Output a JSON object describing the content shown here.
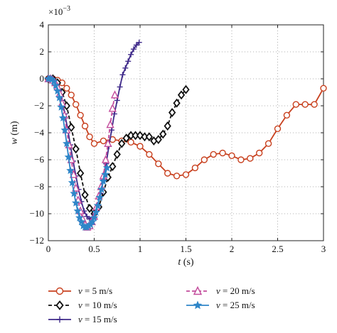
{
  "chart_data": {
    "type": "line",
    "xlabel_var": "t",
    "xlabel_unit": " (s)",
    "ylabel_var": "w",
    "ylabel_unit": " (m)",
    "y_multiplier": "×10",
    "y_multiplier_exp": "−3",
    "xlim": [
      0,
      3
    ],
    "ylim": [
      -12,
      4
    ],
    "xticks": [
      0,
      0.5,
      1,
      1.5,
      2,
      2.5,
      3
    ],
    "xtick_labels": [
      "0",
      "0.5",
      "1",
      "1.5",
      "2",
      "2.5",
      "3"
    ],
    "yticks": [
      4,
      2,
      0,
      -2,
      -4,
      -6,
      -8,
      -10,
      -12
    ],
    "ytick_labels": [
      "4",
      "2",
      "0",
      "−2",
      "−4",
      "−6",
      "−8",
      "−10",
      "−12"
    ],
    "grid": true,
    "legend_position": "below",
    "series": [
      {
        "name_var": "v",
        "name_rest": " = 5 m/s",
        "color": "#c8401e",
        "dash": "solid",
        "marker": "circle",
        "x": [
          0,
          0.05,
          0.1,
          0.15,
          0.2,
          0.25,
          0.3,
          0.35,
          0.4,
          0.45,
          0.5,
          0.6,
          0.7,
          0.8,
          0.9,
          1.0,
          1.1,
          1.2,
          1.3,
          1.4,
          1.5,
          1.6,
          1.7,
          1.8,
          1.9,
          2.0,
          2.1,
          2.2,
          2.3,
          2.4,
          2.5,
          2.6,
          2.7,
          2.8,
          2.9,
          3.0
        ],
        "y": [
          0,
          0,
          -0.1,
          -0.3,
          -0.7,
          -1.2,
          -1.9,
          -2.7,
          -3.5,
          -4.3,
          -4.8,
          -4.6,
          -4.5,
          -4.6,
          -4.7,
          -5.0,
          -5.6,
          -6.3,
          -7.0,
          -7.2,
          -7.1,
          -6.6,
          -6.0,
          -5.6,
          -5.5,
          -5.7,
          -6.0,
          -5.9,
          -5.5,
          -4.8,
          -3.7,
          -2.7,
          -1.9,
          -1.9,
          -1.9,
          -0.7
        ]
      },
      {
        "name_var": "v",
        "name_rest": " = 10 m/s",
        "color": "#111111",
        "dash": "dashed",
        "marker": "diamond",
        "x": [
          0,
          0.05,
          0.1,
          0.15,
          0.2,
          0.25,
          0.3,
          0.35,
          0.4,
          0.45,
          0.5,
          0.55,
          0.6,
          0.65,
          0.7,
          0.75,
          0.8,
          0.85,
          0.9,
          0.95,
          1.0,
          1.05,
          1.1,
          1.15,
          1.2,
          1.25,
          1.3,
          1.35,
          1.4,
          1.45,
          1.5
        ],
        "y": [
          0,
          0,
          -0.3,
          -1.0,
          -2.0,
          -3.6,
          -5.2,
          -7.0,
          -8.6,
          -9.6,
          -10.0,
          -9.5,
          -8.4,
          -7.3,
          -6.5,
          -5.6,
          -4.8,
          -4.4,
          -4.2,
          -4.2,
          -4.2,
          -4.3,
          -4.3,
          -4.6,
          -4.5,
          -4.1,
          -3.5,
          -2.5,
          -1.8,
          -1.2,
          -0.8
        ]
      },
      {
        "name_var": "v",
        "name_rest": " = 15 m/s",
        "color": "#3f2a8a",
        "dash": "solid",
        "marker": "plus",
        "x": [
          0,
          0.03,
          0.06,
          0.09,
          0.12,
          0.15,
          0.18,
          0.21,
          0.24,
          0.27,
          0.3,
          0.33,
          0.36,
          0.39,
          0.42,
          0.45,
          0.48,
          0.51,
          0.54,
          0.57,
          0.6,
          0.63,
          0.66,
          0.69,
          0.72,
          0.75,
          0.78,
          0.81,
          0.84,
          0.87,
          0.9,
          0.93,
          0.96,
          0.99
        ],
        "y": [
          0,
          0,
          -0.1,
          -0.4,
          -0.9,
          -1.6,
          -2.6,
          -3.7,
          -4.9,
          -6.1,
          -7.2,
          -8.2,
          -9.1,
          -9.8,
          -10.2,
          -10.4,
          -10.3,
          -10.0,
          -9.4,
          -8.5,
          -7.5,
          -6.3,
          -5.0,
          -3.8,
          -2.6,
          -1.6,
          -0.6,
          0.3,
          0.8,
          1.3,
          1.8,
          2.2,
          2.5,
          2.7
        ]
      },
      {
        "name_var": "v",
        "name_rest": " = 20 m/s",
        "color": "#c34c9c",
        "dash": "dashed",
        "marker": "triangle",
        "x": [
          0,
          0.025,
          0.05,
          0.075,
          0.1,
          0.125,
          0.15,
          0.175,
          0.2,
          0.225,
          0.25,
          0.275,
          0.3,
          0.325,
          0.35,
          0.375,
          0.4,
          0.425,
          0.45,
          0.475,
          0.5,
          0.525,
          0.55,
          0.575,
          0.6,
          0.625,
          0.65,
          0.675,
          0.7,
          0.725
        ],
        "y": [
          0,
          0,
          -0.1,
          -0.3,
          -0.6,
          -1.1,
          -1.8,
          -2.7,
          -3.8,
          -4.9,
          -6.0,
          -7.1,
          -8.1,
          -9.0,
          -9.8,
          -10.4,
          -10.8,
          -11.0,
          -10.9,
          -10.6,
          -10.2,
          -9.5,
          -8.7,
          -8.0,
          -7.2,
          -6.0,
          -4.8,
          -3.4,
          -2.2,
          -1.2
        ]
      },
      {
        "name_var": "v",
        "name_rest": " = 25 m/s",
        "color": "#2f86c8",
        "dash": "solid",
        "marker": "star",
        "x": [
          0,
          0.02,
          0.04,
          0.06,
          0.08,
          0.1,
          0.12,
          0.14,
          0.16,
          0.18,
          0.2,
          0.22,
          0.24,
          0.26,
          0.28,
          0.3,
          0.32,
          0.34,
          0.36,
          0.38,
          0.4,
          0.42,
          0.44,
          0.46,
          0.48,
          0.5,
          0.52,
          0.54,
          0.56,
          0.58,
          0.6,
          0.62,
          0.64
        ],
        "y": [
          0,
          0,
          -0.05,
          -0.2,
          -0.5,
          -0.9,
          -1.4,
          -2.1,
          -2.9,
          -3.8,
          -4.8,
          -5.8,
          -6.8,
          -7.7,
          -8.5,
          -9.2,
          -9.8,
          -10.3,
          -10.6,
          -10.9,
          -11.0,
          -11.0,
          -10.9,
          -10.8,
          -10.6,
          -10.3,
          -9.9,
          -9.4,
          -8.8,
          -8.2,
          -7.6,
          -7.1,
          -6.6
        ]
      }
    ]
  }
}
